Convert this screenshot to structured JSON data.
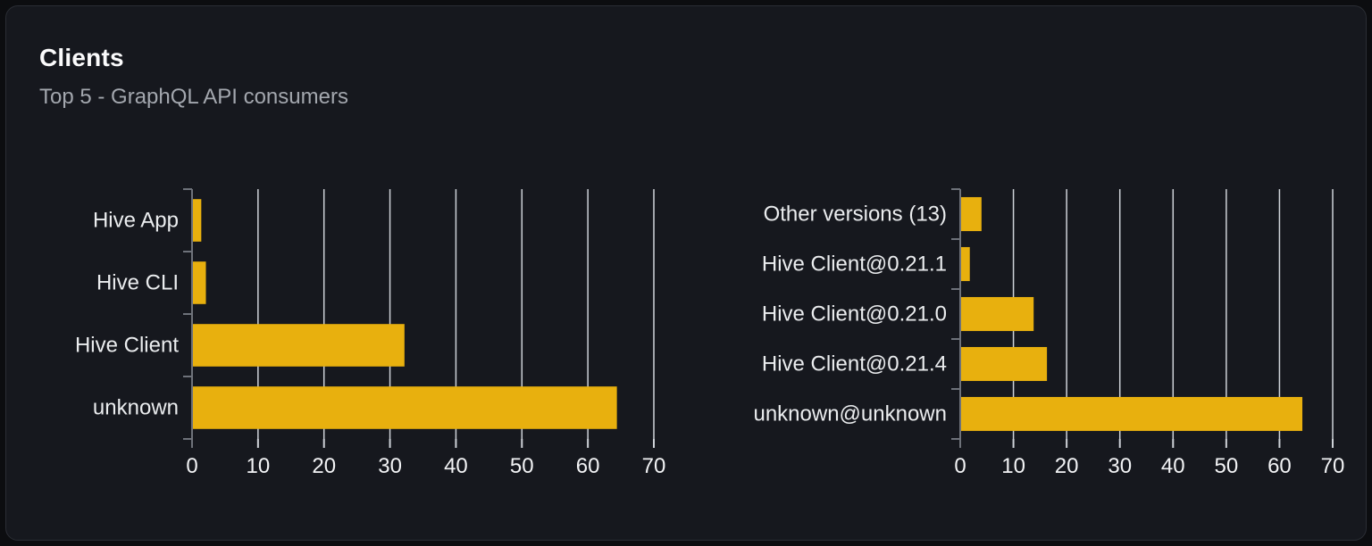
{
  "card": {
    "title": "Clients",
    "subtitle": "Top 5 - GraphQL API consumers"
  },
  "colors": {
    "bar": "#e8b00e",
    "grid": "#ced2d8",
    "axis": "#6e727a",
    "tick_label": "#f2f3f5",
    "category_label": "#ebedef",
    "page_background": "#0c0d10",
    "card_background": "#16181e",
    "card_border": "#2a2d34",
    "title_color": "#fbfbfc",
    "subtitle_color": "#a3a7ae"
  },
  "chart_data": [
    {
      "type": "bar",
      "orientation": "horizontal",
      "name": "clients-by-name",
      "categories": [
        "Hive App",
        "Hive CLI",
        "Hive Client",
        "unknown"
      ],
      "values": [
        1.4,
        2.1,
        32.2,
        64.4
      ],
      "xlim": [
        0,
        70
      ],
      "xticks": [
        0,
        10,
        20,
        30,
        40,
        50,
        60,
        70
      ],
      "grid": true,
      "legend": false
    },
    {
      "type": "bar",
      "orientation": "horizontal",
      "name": "clients-by-version",
      "categories": [
        "Other versions (13)",
        "Hive Client@0.21.1",
        "Hive Client@0.21.0",
        "Hive Client@0.21.4",
        "unknown@unknown"
      ],
      "values": [
        4.0,
        1.8,
        13.8,
        16.3,
        64.3
      ],
      "xlim": [
        0,
        70
      ],
      "xticks": [
        0,
        10,
        20,
        30,
        40,
        50,
        60,
        70
      ],
      "grid": true,
      "legend": false
    }
  ]
}
